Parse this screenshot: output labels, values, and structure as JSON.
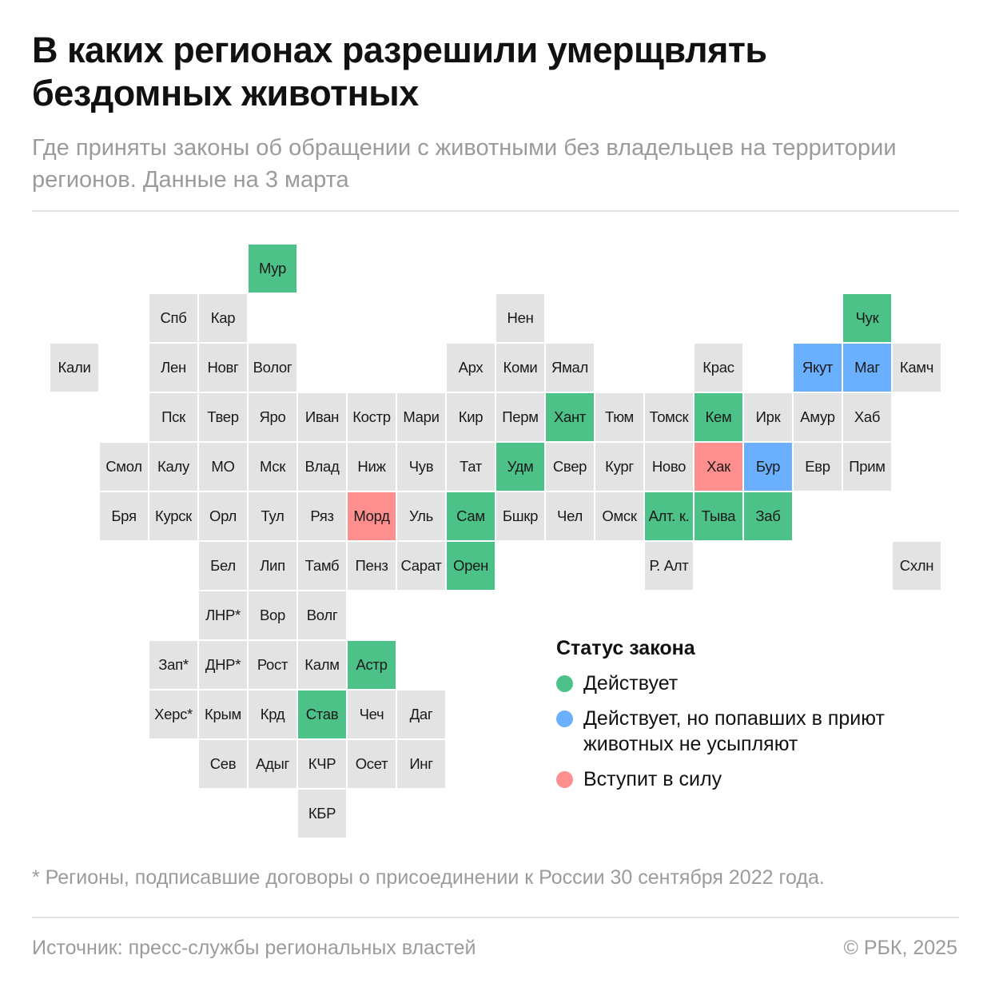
{
  "title": "В каких регионах разрешили умерщвлять бездомных животных",
  "subtitle": "Где приняты законы об обращении с животными без владельцев на территории регионов. Данные на 3 марта",
  "status_colors": {
    "active": "#4cc288",
    "active_no_euthanasia": "#6ab0ff",
    "upcoming": "#ff8f8f",
    "none": "#e3e3e3"
  },
  "legend": {
    "title": "Статус закона",
    "items": [
      {
        "status": "active",
        "label": "Действует"
      },
      {
        "status": "active_no_euthanasia",
        "label": "Действует, но попавших в приют животных не усыпляют"
      },
      {
        "status": "upcoming",
        "label": "Вступит в силу"
      }
    ]
  },
  "regions": [
    {
      "label": "Мур",
      "row": 0,
      "col": 4,
      "status": "active"
    },
    {
      "label": "Спб",
      "row": 1,
      "col": 2,
      "status": "none"
    },
    {
      "label": "Кар",
      "row": 1,
      "col": 3,
      "status": "none"
    },
    {
      "label": "Нен",
      "row": 1,
      "col": 9,
      "status": "none"
    },
    {
      "label": "Чук",
      "row": 1,
      "col": 16,
      "status": "active"
    },
    {
      "label": "Кали",
      "row": 2,
      "col": 0,
      "status": "none"
    },
    {
      "label": "Лен",
      "row": 2,
      "col": 2,
      "status": "none"
    },
    {
      "label": "Новг",
      "row": 2,
      "col": 3,
      "status": "none"
    },
    {
      "label": "Волог",
      "row": 2,
      "col": 4,
      "status": "none"
    },
    {
      "label": "Арх",
      "row": 2,
      "col": 8,
      "status": "none"
    },
    {
      "label": "Коми",
      "row": 2,
      "col": 9,
      "status": "none"
    },
    {
      "label": "Ямал",
      "row": 2,
      "col": 10,
      "status": "none"
    },
    {
      "label": "Крас",
      "row": 2,
      "col": 13,
      "status": "none"
    },
    {
      "label": "Якут",
      "row": 2,
      "col": 15,
      "status": "active_no_euthanasia"
    },
    {
      "label": "Маг",
      "row": 2,
      "col": 16,
      "status": "active_no_euthanasia"
    },
    {
      "label": "Камч",
      "row": 2,
      "col": 17,
      "status": "none"
    },
    {
      "label": "Пск",
      "row": 3,
      "col": 2,
      "status": "none"
    },
    {
      "label": "Твер",
      "row": 3,
      "col": 3,
      "status": "none"
    },
    {
      "label": "Яро",
      "row": 3,
      "col": 4,
      "status": "none"
    },
    {
      "label": "Иван",
      "row": 3,
      "col": 5,
      "status": "none"
    },
    {
      "label": "Костр",
      "row": 3,
      "col": 6,
      "status": "none"
    },
    {
      "label": "Мари",
      "row": 3,
      "col": 7,
      "status": "none"
    },
    {
      "label": "Кир",
      "row": 3,
      "col": 8,
      "status": "none"
    },
    {
      "label": "Перм",
      "row": 3,
      "col": 9,
      "status": "none"
    },
    {
      "label": "Хант",
      "row": 3,
      "col": 10,
      "status": "active"
    },
    {
      "label": "Тюм",
      "row": 3,
      "col": 11,
      "status": "none"
    },
    {
      "label": "Томск",
      "row": 3,
      "col": 12,
      "status": "none"
    },
    {
      "label": "Кем",
      "row": 3,
      "col": 13,
      "status": "active"
    },
    {
      "label": "Ирк",
      "row": 3,
      "col": 14,
      "status": "none"
    },
    {
      "label": "Амур",
      "row": 3,
      "col": 15,
      "status": "none"
    },
    {
      "label": "Хаб",
      "row": 3,
      "col": 16,
      "status": "none"
    },
    {
      "label": "Смол",
      "row": 4,
      "col": 1,
      "status": "none"
    },
    {
      "label": "Калу",
      "row": 4,
      "col": 2,
      "status": "none"
    },
    {
      "label": "МО",
      "row": 4,
      "col": 3,
      "status": "none"
    },
    {
      "label": "Мск",
      "row": 4,
      "col": 4,
      "status": "none"
    },
    {
      "label": "Влад",
      "row": 4,
      "col": 5,
      "status": "none"
    },
    {
      "label": "Ниж",
      "row": 4,
      "col": 6,
      "status": "none"
    },
    {
      "label": "Чув",
      "row": 4,
      "col": 7,
      "status": "none"
    },
    {
      "label": "Тат",
      "row": 4,
      "col": 8,
      "status": "none"
    },
    {
      "label": "Удм",
      "row": 4,
      "col": 9,
      "status": "active"
    },
    {
      "label": "Свер",
      "row": 4,
      "col": 10,
      "status": "none"
    },
    {
      "label": "Кург",
      "row": 4,
      "col": 11,
      "status": "none"
    },
    {
      "label": "Ново",
      "row": 4,
      "col": 12,
      "status": "none"
    },
    {
      "label": "Хак",
      "row": 4,
      "col": 13,
      "status": "upcoming"
    },
    {
      "label": "Бур",
      "row": 4,
      "col": 14,
      "status": "active_no_euthanasia"
    },
    {
      "label": "Евр",
      "row": 4,
      "col": 15,
      "status": "none"
    },
    {
      "label": "Прим",
      "row": 4,
      "col": 16,
      "status": "none"
    },
    {
      "label": "Бря",
      "row": 5,
      "col": 1,
      "status": "none"
    },
    {
      "label": "Курск",
      "row": 5,
      "col": 2,
      "status": "none"
    },
    {
      "label": "Орл",
      "row": 5,
      "col": 3,
      "status": "none"
    },
    {
      "label": "Тул",
      "row": 5,
      "col": 4,
      "status": "none"
    },
    {
      "label": "Ряз",
      "row": 5,
      "col": 5,
      "status": "none"
    },
    {
      "label": "Морд",
      "row": 5,
      "col": 6,
      "status": "upcoming"
    },
    {
      "label": "Уль",
      "row": 5,
      "col": 7,
      "status": "none"
    },
    {
      "label": "Сам",
      "row": 5,
      "col": 8,
      "status": "active"
    },
    {
      "label": "Бшкр",
      "row": 5,
      "col": 9,
      "status": "none"
    },
    {
      "label": "Чел",
      "row": 5,
      "col": 10,
      "status": "none"
    },
    {
      "label": "Омск",
      "row": 5,
      "col": 11,
      "status": "none"
    },
    {
      "label": "Алт. к.",
      "row": 5,
      "col": 12,
      "status": "active"
    },
    {
      "label": "Тыва",
      "row": 5,
      "col": 13,
      "status": "active"
    },
    {
      "label": "Заб",
      "row": 5,
      "col": 14,
      "status": "active"
    },
    {
      "label": "Бел",
      "row": 6,
      "col": 3,
      "status": "none"
    },
    {
      "label": "Лип",
      "row": 6,
      "col": 4,
      "status": "none"
    },
    {
      "label": "Тамб",
      "row": 6,
      "col": 5,
      "status": "none"
    },
    {
      "label": "Пенз",
      "row": 6,
      "col": 6,
      "status": "none"
    },
    {
      "label": "Сарат",
      "row": 6,
      "col": 7,
      "status": "none"
    },
    {
      "label": "Орен",
      "row": 6,
      "col": 8,
      "status": "active"
    },
    {
      "label": "Р. Алт",
      "row": 6,
      "col": 12,
      "status": "none"
    },
    {
      "label": "Схлн",
      "row": 6,
      "col": 17,
      "status": "none"
    },
    {
      "label": "ЛНР*",
      "row": 7,
      "col": 3,
      "status": "none"
    },
    {
      "label": "Вор",
      "row": 7,
      "col": 4,
      "status": "none"
    },
    {
      "label": "Волг",
      "row": 7,
      "col": 5,
      "status": "none"
    },
    {
      "label": "Зап*",
      "row": 8,
      "col": 2,
      "status": "none"
    },
    {
      "label": "ДНР*",
      "row": 8,
      "col": 3,
      "status": "none"
    },
    {
      "label": "Рост",
      "row": 8,
      "col": 4,
      "status": "none"
    },
    {
      "label": "Калм",
      "row": 8,
      "col": 5,
      "status": "none"
    },
    {
      "label": "Астр",
      "row": 8,
      "col": 6,
      "status": "active"
    },
    {
      "label": "Херс*",
      "row": 9,
      "col": 2,
      "status": "none"
    },
    {
      "label": "Крым",
      "row": 9,
      "col": 3,
      "status": "none"
    },
    {
      "label": "Крд",
      "row": 9,
      "col": 4,
      "status": "none"
    },
    {
      "label": "Став",
      "row": 9,
      "col": 5,
      "status": "active"
    },
    {
      "label": "Чеч",
      "row": 9,
      "col": 6,
      "status": "none"
    },
    {
      "label": "Даг",
      "row": 9,
      "col": 7,
      "status": "none"
    },
    {
      "label": "Сев",
      "row": 10,
      "col": 3,
      "status": "none"
    },
    {
      "label": "Адыг",
      "row": 10,
      "col": 4,
      "status": "none"
    },
    {
      "label": "КЧР",
      "row": 10,
      "col": 5,
      "status": "none"
    },
    {
      "label": "Осет",
      "row": 10,
      "col": 6,
      "status": "none"
    },
    {
      "label": "Инг",
      "row": 10,
      "col": 7,
      "status": "none"
    },
    {
      "label": "КБР",
      "row": 11,
      "col": 5,
      "status": "none"
    }
  ],
  "footnote": "* Регионы, подписавшие договоры о присоединении к России 30 сентября 2022 года.",
  "source": "Источник: пресс-службы региональных властей",
  "copyright": "© РБК, 2025"
}
